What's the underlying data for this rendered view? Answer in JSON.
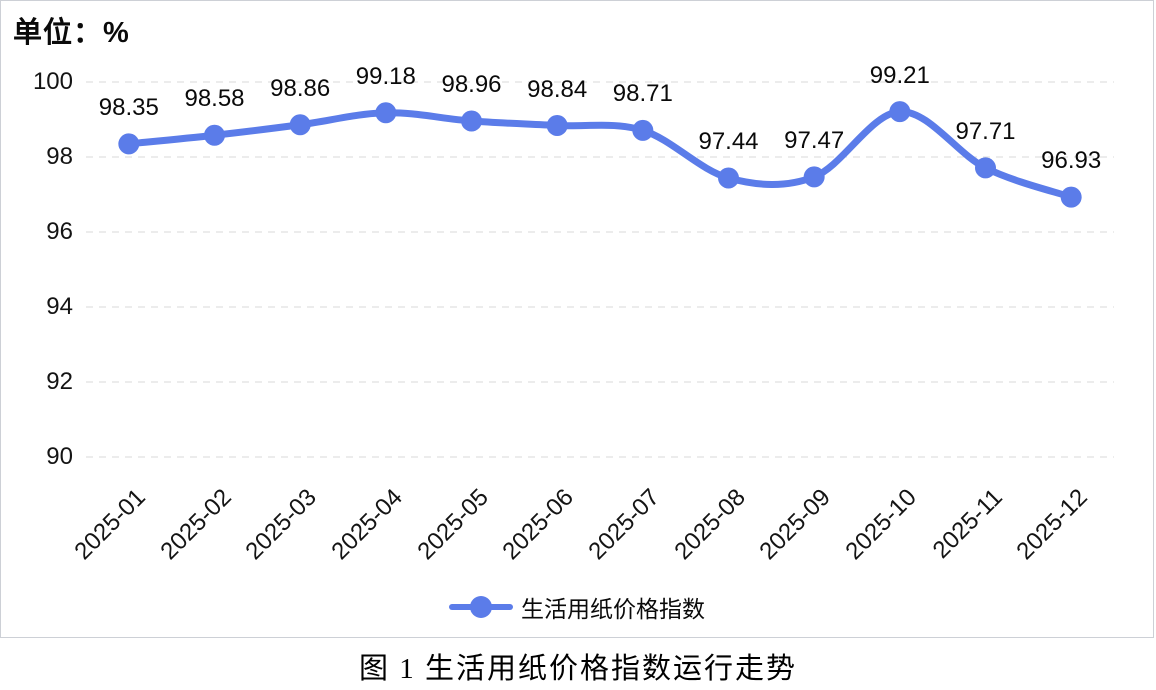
{
  "chart": {
    "unit_label": "单位：%",
    "legend_label": "生活用纸价格指数"
  },
  "caption": "图 1 生活用纸价格指数运行走势",
  "colors": {
    "line": "#5B7CE9",
    "marker": "#5B7CE9",
    "grid": "#D9D9D9",
    "axis_text": "#141414",
    "chart_border": "#CDD0D6"
  },
  "chart_data": {
    "type": "line",
    "title": "",
    "categories": [
      "2025-01",
      "2025-02",
      "2025-03",
      "2025-04",
      "2025-05",
      "2025-06",
      "2025-07",
      "2025-08",
      "2025-09",
      "2025-10",
      "2025-11",
      "2025-12"
    ],
    "series": [
      {
        "name": "生活用纸价格指数",
        "values": [
          98.35,
          98.58,
          98.86,
          99.18,
          98.96,
          98.84,
          98.71,
          97.44,
          97.47,
          99.21,
          97.71,
          96.93
        ]
      }
    ],
    "xlabel": "",
    "ylabel": "单位：%",
    "ylim": [
      90,
      100
    ],
    "yticks": [
      90,
      92,
      94,
      96,
      98,
      100
    ],
    "grid": "horizontal-dashed",
    "smooth": true,
    "markers": true,
    "data_labels": true,
    "legend_position": "bottom",
    "x_label_rotation": 45
  }
}
